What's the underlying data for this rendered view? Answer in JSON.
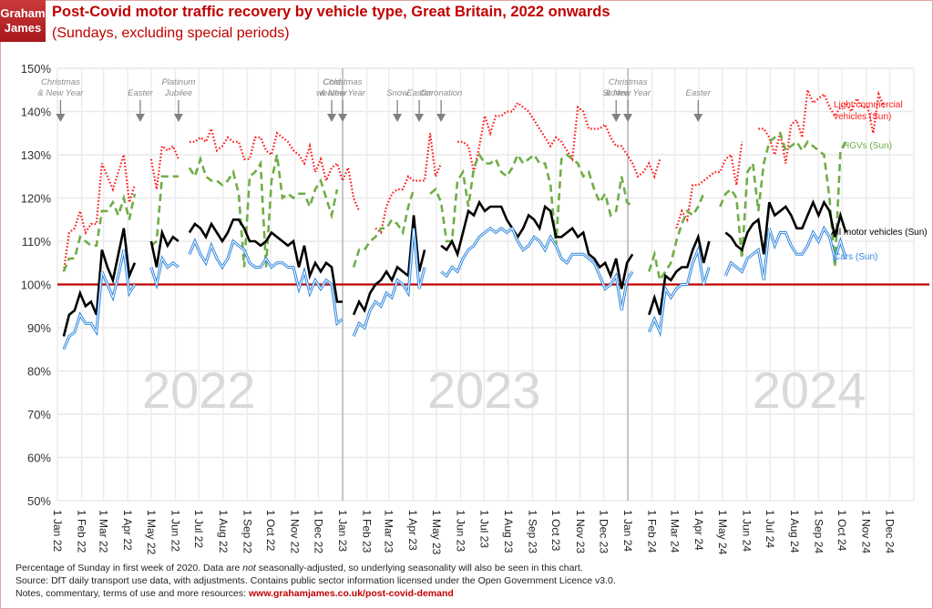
{
  "logo": {
    "line1": "Graham",
    "line2": "James"
  },
  "header": {
    "title": "Post-Covid motor traffic recovery by vehicle type, Great Britain, 2022 onwards",
    "subtitle": "(Sundays, excluding special periods)"
  },
  "footer": {
    "line1_pre": "Percentage of Sunday in first week of 2020.  Data are ",
    "line1_em": "not",
    "line1_post": " seasonally-adjusted, so underlying seasonality will also be seen in this chart.",
    "line2": "Source: DfT daily transport use data, with adjustments. Contains public sector information licensed under the Open Government Licence v3.0.",
    "line3_pre": "Notes, commentary, terms of use and more resources: ",
    "line3_link": "www.grahamjames.co.uk/post-covid-demand"
  },
  "colors": {
    "brand": "#c00000",
    "lcv": "#ff1a1a",
    "hgv": "#70ad47",
    "all": "#000000",
    "cars": "#2e86de",
    "baseline": "#c00000"
  },
  "chart_data": {
    "type": "line",
    "title": "Post-Covid motor traffic recovery by vehicle type, Great Britain, 2022 onwards",
    "subtitle": "(Sundays, excluding special periods)",
    "xlabel": "",
    "ylabel": "",
    "ylim": [
      50,
      150
    ],
    "yticks": [
      50,
      60,
      70,
      80,
      90,
      100,
      110,
      120,
      130,
      140,
      150
    ],
    "ytick_labels": [
      "50%",
      "60%",
      "70%",
      "80%",
      "90%",
      "100%",
      "110%",
      "120%",
      "130%",
      "140%",
      "150%"
    ],
    "x_start": "2022-01-02",
    "x_step_days": 7,
    "x_domain": [
      "2022-01-01",
      "2025-01-01"
    ],
    "xtick_labels": [
      "1 Jan 22",
      "1 Feb 22",
      "1 Mar 22",
      "1 Apr 22",
      "1 May 22",
      "1 Jun 22",
      "1 Jul 22",
      "1 Aug 22",
      "1 Sep 22",
      "1 Oct 22",
      "1 Nov 22",
      "1 Dec 22",
      "1 Jan 23",
      "1 Feb 23",
      "1 Mar 23",
      "1 Apr 23",
      "1 May 23",
      "1 Jun 23",
      "1 Jul 23",
      "1 Aug 23",
      "1 Sep 23",
      "1 Oct 23",
      "1 Nov 23",
      "1 Dec 23",
      "1 Jan 24",
      "1 Feb 24",
      "1 Mar 24",
      "1 Apr 24",
      "1 May 24",
      "1 Jun 24",
      "1 Jul 24",
      "1 Aug 24",
      "1 Sep 24",
      "1 Oct 24",
      "1 Nov 24",
      "1 Dec 24"
    ],
    "xtick_dates": [
      "2022-01-01",
      "2022-02-01",
      "2022-03-01",
      "2022-04-01",
      "2022-05-01",
      "2022-06-01",
      "2022-07-01",
      "2022-08-01",
      "2022-09-01",
      "2022-10-01",
      "2022-11-01",
      "2022-12-01",
      "2023-01-01",
      "2023-02-01",
      "2023-03-01",
      "2023-04-01",
      "2023-05-01",
      "2023-06-01",
      "2023-07-01",
      "2023-08-01",
      "2023-09-01",
      "2023-10-01",
      "2023-11-01",
      "2023-12-01",
      "2024-01-01",
      "2024-02-01",
      "2024-03-01",
      "2024-04-01",
      "2024-05-01",
      "2024-06-01",
      "2024-07-01",
      "2024-08-01",
      "2024-09-01",
      "2024-10-01",
      "2024-11-01",
      "2024-12-01"
    ],
    "baseline": 100,
    "year_labels": [
      {
        "text": "2022",
        "date": "2022-07-01"
      },
      {
        "text": "2023",
        "date": "2023-07-01"
      },
      {
        "text": "2024",
        "date": "2024-08-20"
      }
    ],
    "year_dividers": [
      "2023-01-01",
      "2024-01-01"
    ],
    "annotations": [
      {
        "text1": "Christmas",
        "text2": "& New Year",
        "date": "2022-01-05"
      },
      {
        "text1": "",
        "text2": "Easter",
        "date": "2022-04-17"
      },
      {
        "text1": "Platinum",
        "text2": "Jubilee",
        "date": "2022-06-05"
      },
      {
        "text1": "Cold",
        "text2": "weather",
        "date": "2022-12-18"
      },
      {
        "text1": "Christmas",
        "text2": "& New Year",
        "date": "2023-01-01"
      },
      {
        "text1": "",
        "text2": "Snow",
        "date": "2023-03-12"
      },
      {
        "text1": "",
        "text2": "Easter",
        "date": "2023-04-09"
      },
      {
        "text1": "",
        "text2": "Coronation",
        "date": "2023-05-07"
      },
      {
        "text1": "",
        "text2": "Storms",
        "date": "2023-12-17"
      },
      {
        "text1": "Christmas",
        "text2": "& New Year",
        "date": "2024-01-01"
      },
      {
        "text1": "",
        "text2": "Easter",
        "date": "2024-03-31"
      }
    ],
    "series": [
      {
        "name": "Light commercial vehicles (Sun)",
        "label1": "Light commercial",
        "label2": "vehicles (Sun)",
        "style": "dotted",
        "values": [
          null,
          103,
          112,
          113,
          117,
          112,
          114,
          114,
          128,
          125,
          122,
          126,
          130,
          119,
          123,
          null,
          null,
          129,
          122,
          132,
          131,
          132,
          129,
          null,
          133,
          133,
          134,
          133,
          136,
          131,
          132,
          134,
          133,
          133,
          129,
          129,
          134,
          134,
          131,
          130,
          135,
          134,
          133,
          131,
          130,
          128,
          132,
          126,
          129,
          124,
          127,
          128,
          124,
          127,
          120,
          117,
          null,
          null,
          113,
          112,
          118,
          121,
          122,
          122,
          125,
          124,
          124,
          124,
          135,
          125,
          128,
          null,
          null,
          133,
          133,
          132,
          126,
          132,
          139,
          135,
          139,
          139,
          140,
          140,
          142,
          141,
          140,
          138,
          136,
          134,
          132,
          134,
          133,
          131,
          129,
          141,
          140,
          136,
          136,
          136,
          137,
          134,
          132,
          132,
          130,
          128,
          125,
          126,
          128,
          125,
          129,
          null,
          null,
          113,
          117,
          115,
          123,
          123,
          124,
          125,
          126,
          126,
          129,
          130,
          123,
          133,
          null,
          null,
          136,
          136,
          134,
          130,
          135,
          128,
          137,
          138,
          134,
          145,
          142,
          143,
          144,
          141,
          139,
          141,
          142,
          140,
          143,
          141,
          141,
          135,
          144,
          141
        ]
      },
      {
        "name": "HGVs (Sun)",
        "label1": "HGVs (Sun)",
        "label2": "",
        "style": "dashed",
        "values": [
          null,
          103,
          106,
          106,
          111,
          110,
          109,
          109,
          117,
          117,
          119,
          116,
          120,
          115,
          121,
          null,
          null,
          109,
          110,
          125,
          125,
          125,
          125,
          null,
          127,
          125,
          129,
          125,
          124,
          124,
          123,
          124,
          126,
          121,
          104,
          125,
          126,
          128,
          104,
          124,
          130,
          120,
          121,
          120,
          121,
          121,
          118,
          122,
          124,
          120,
          116,
          122,
          null,
          null,
          104,
          108,
          108,
          110,
          111,
          113,
          113,
          115,
          114,
          112,
          118,
          122,
          null,
          null,
          121,
          122,
          119,
          110,
          110,
          124,
          126,
          118,
          127,
          130,
          128,
          128,
          129,
          126,
          125,
          127,
          130,
          128,
          129,
          130,
          128,
          128,
          123,
          109,
          129,
          130,
          129,
          128,
          125,
          126,
          122,
          119,
          121,
          116,
          117,
          125,
          119,
          118,
          null,
          null,
          103,
          107,
          101,
          103,
          105,
          110,
          114,
          117,
          116,
          118,
          121,
          null,
          null,
          118,
          121,
          122,
          120,
          106,
          126,
          128,
          117,
          128,
          133,
          134,
          135,
          131,
          132,
          133,
          131,
          133,
          132,
          131,
          130,
          120,
          104,
          131,
          133
        ]
      },
      {
        "name": "All motor vehicles (Sun)",
        "label1": "All motor vehicles (Sun)",
        "label2": "",
        "style": "solid",
        "values": [
          null,
          88,
          93,
          94,
          98,
          95,
          96,
          93,
          108,
          104,
          101,
          107,
          113,
          102,
          105,
          null,
          null,
          110,
          104,
          112,
          109,
          111,
          110,
          null,
          112,
          114,
          113,
          111,
          114,
          112,
          110,
          112,
          115,
          115,
          113,
          110,
          110,
          109,
          110,
          112,
          111,
          110,
          109,
          110,
          104,
          109,
          102,
          105,
          103,
          105,
          104,
          96,
          96,
          null,
          93,
          96,
          94,
          98,
          100,
          101,
          103,
          101,
          104,
          103,
          102,
          116,
          103,
          108,
          null,
          null,
          109,
          108,
          110,
          107,
          112,
          117,
          116,
          119,
          117,
          118,
          118,
          118,
          115,
          113,
          111,
          113,
          116,
          115,
          113,
          118,
          117,
          111,
          111,
          112,
          113,
          111,
          112,
          107,
          106,
          104,
          105,
          102,
          106,
          99,
          105,
          107,
          null,
          null,
          93,
          97,
          93,
          102,
          101,
          103,
          104,
          104,
          108,
          111,
          105,
          110,
          null,
          null,
          112,
          111,
          109,
          108,
          112,
          114,
          115,
          107,
          119,
          116,
          117,
          118,
          116,
          113,
          113,
          116,
          119,
          116,
          119,
          117,
          111,
          116,
          112
        ]
      },
      {
        "name": "Cars (Sun)",
        "label1": "Cars (Sun)",
        "label2": "",
        "style": "double",
        "values": [
          null,
          85,
          88,
          89,
          93,
          91,
          91,
          89,
          103,
          100,
          97,
          102,
          108,
          98,
          100,
          null,
          null,
          104,
          100,
          106,
          104,
          105,
          104,
          null,
          107,
          110,
          107,
          105,
          109,
          106,
          104,
          106,
          110,
          109,
          108,
          105,
          104,
          104,
          106,
          104,
          105,
          105,
          104,
          104,
          99,
          103,
          98,
          101,
          99,
          101,
          100,
          91,
          92,
          null,
          88,
          91,
          90,
          94,
          96,
          95,
          98,
          97,
          101,
          100,
          98,
          113,
          99,
          104,
          null,
          null,
          103,
          102,
          104,
          103,
          106,
          108,
          109,
          111,
          112,
          113,
          112,
          113,
          112,
          113,
          110,
          108,
          109,
          111,
          110,
          108,
          111,
          109,
          106,
          105,
          107,
          107,
          107,
          106,
          105,
          102,
          99,
          100,
          102,
          94,
          101,
          103,
          null,
          null,
          89,
          92,
          89,
          99,
          97,
          99,
          100,
          100,
          105,
          108,
          100,
          104,
          null,
          null,
          102,
          105,
          104,
          103,
          106,
          107,
          108,
          101,
          113,
          109,
          112,
          112,
          109,
          107,
          107,
          109,
          112,
          110,
          113,
          111,
          106,
          110,
          106
        ]
      }
    ]
  }
}
